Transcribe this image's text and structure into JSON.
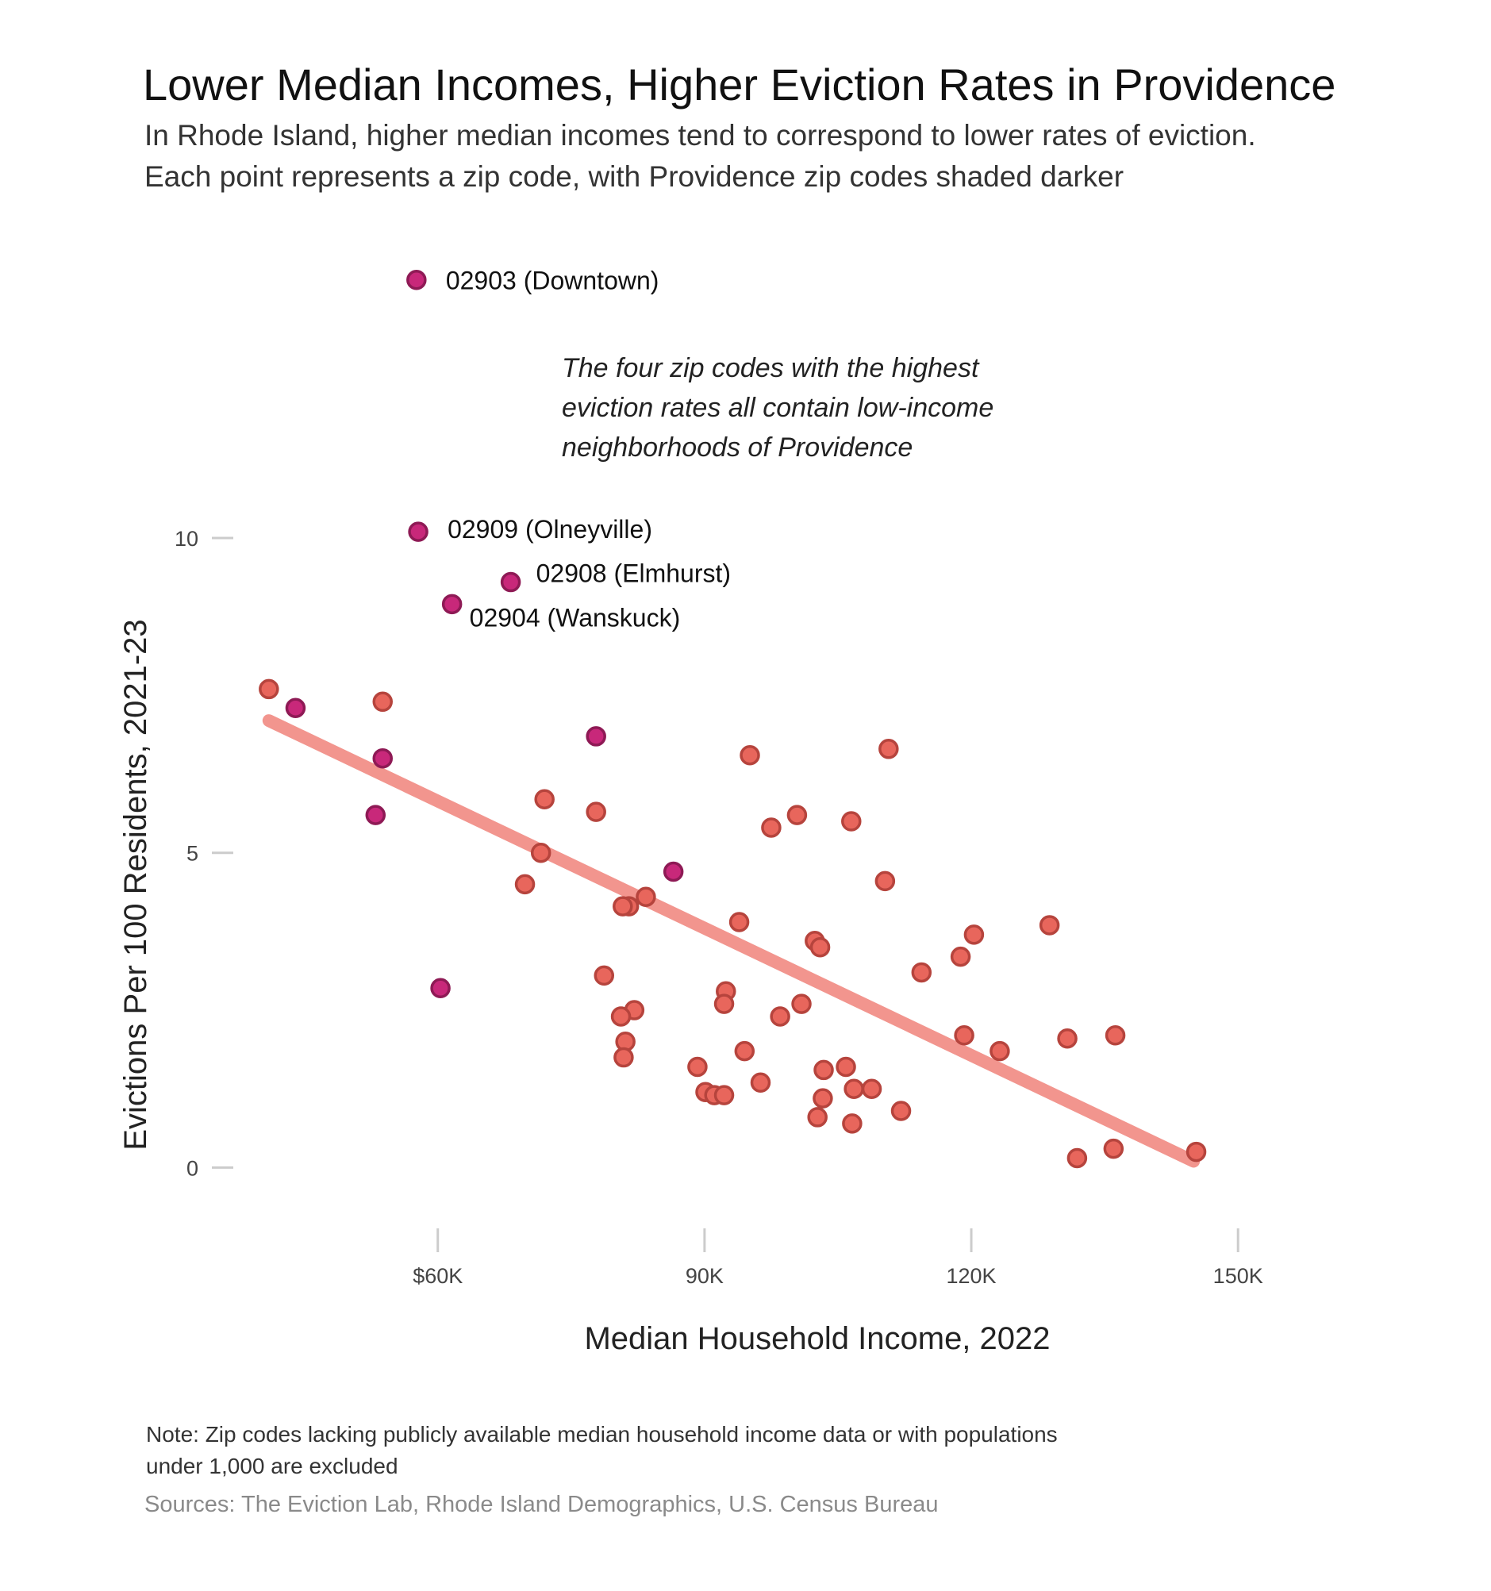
{
  "header": {
    "title": "Lower Median Incomes, Higher Eviction Rates in Providence",
    "subtitle_line1": "In Rhode Island, higher median incomes tend to correspond to lower rates of eviction.",
    "subtitle_line2": "Each point represents a zip code, with Providence zip codes shaded darker"
  },
  "footer": {
    "note_line1": "Note: Zip codes lacking publicly available median household income data or with populations",
    "note_line2": "under 1,000 are excluded",
    "sources": "Sources: The Eviction Lab, Rhode Island Demographics, U.S. Census Bureau"
  },
  "chart_data": {
    "type": "scatter",
    "xlabel": "Median Household Income, 2022",
    "ylabel": "Evictions Per 100 Residents, 2021-23",
    "xlim": [
      37000,
      149000
    ],
    "ylim": [
      -0.6,
      14.5
    ],
    "x_ticks": [
      {
        "value": 60000,
        "label": "$60K"
      },
      {
        "value": 90000,
        "label": "90K"
      },
      {
        "value": 120000,
        "label": "120K"
      },
      {
        "value": 150000,
        "label": "150K"
      }
    ],
    "y_ticks": [
      {
        "value": 0,
        "label": "0"
      },
      {
        "value": 5,
        "label": "5"
      },
      {
        "value": 10,
        "label": "10"
      }
    ],
    "grid": false,
    "colors": {
      "providence": "#c8287a",
      "providence_stroke": "#8e1a55",
      "other": "#e8665c",
      "other_stroke": "#b6443d",
      "trend": "#f2958e"
    },
    "trendline": {
      "x": [
        41000,
        145000
      ],
      "y": [
        7.1,
        0.1
      ]
    },
    "annotation": {
      "line1": "The four zip codes with the highest",
      "line2": "eviction rates all contain low-income",
      "line3": "neighborhoods of Providence"
    },
    "series": [
      {
        "group": "providence",
        "points": [
          {
            "x": 57600,
            "y": 14.1,
            "label": "02903 (Downtown)"
          },
          {
            "x": 57800,
            "y": 10.1,
            "label": "02909 (Olneyville)"
          },
          {
            "x": 68200,
            "y": 9.3,
            "label": "02908 (Elmhurst)"
          },
          {
            "x": 61600,
            "y": 8.95,
            "label": "02904 (Wanskuck)"
          },
          {
            "x": 44000,
            "y": 7.3
          },
          {
            "x": 53800,
            "y": 6.5
          },
          {
            "x": 53000,
            "y": 5.6
          },
          {
            "x": 77800,
            "y": 6.85
          },
          {
            "x": 86500,
            "y": 4.7
          },
          {
            "x": 60300,
            "y": 2.85
          }
        ]
      },
      {
        "group": "other",
        "points": [
          {
            "x": 41000,
            "y": 7.6
          },
          {
            "x": 53800,
            "y": 7.4
          },
          {
            "x": 72000,
            "y": 5.85
          },
          {
            "x": 71600,
            "y": 5.0
          },
          {
            "x": 69800,
            "y": 4.5
          },
          {
            "x": 77800,
            "y": 5.65
          },
          {
            "x": 83400,
            "y": 4.3
          },
          {
            "x": 81500,
            "y": 4.15
          },
          {
            "x": 80800,
            "y": 4.15
          },
          {
            "x": 78700,
            "y": 3.05
          },
          {
            "x": 82100,
            "y": 2.5
          },
          {
            "x": 80600,
            "y": 2.4
          },
          {
            "x": 81100,
            "y": 2.0
          },
          {
            "x": 80900,
            "y": 1.75
          },
          {
            "x": 89200,
            "y": 1.6
          },
          {
            "x": 90100,
            "y": 1.2
          },
          {
            "x": 91100,
            "y": 1.15
          },
          {
            "x": 92200,
            "y": 1.15
          },
          {
            "x": 92400,
            "y": 2.8
          },
          {
            "x": 92200,
            "y": 2.6
          },
          {
            "x": 93900,
            "y": 3.9
          },
          {
            "x": 94500,
            "y": 1.85
          },
          {
            "x": 96300,
            "y": 1.35
          },
          {
            "x": 95100,
            "y": 6.55
          },
          {
            "x": 97500,
            "y": 5.4
          },
          {
            "x": 98500,
            "y": 2.4
          },
          {
            "x": 100400,
            "y": 5.6
          },
          {
            "x": 100900,
            "y": 2.6
          },
          {
            "x": 102400,
            "y": 3.6
          },
          {
            "x": 103000,
            "y": 3.5
          },
          {
            "x": 103400,
            "y": 1.55
          },
          {
            "x": 103300,
            "y": 1.1
          },
          {
            "x": 102700,
            "y": 0.8
          },
          {
            "x": 105900,
            "y": 1.6
          },
          {
            "x": 106800,
            "y": 1.25
          },
          {
            "x": 106600,
            "y": 0.7
          },
          {
            "x": 106500,
            "y": 5.5
          },
          {
            "x": 108800,
            "y": 1.25
          },
          {
            "x": 110700,
            "y": 6.65
          },
          {
            "x": 110300,
            "y": 4.55
          },
          {
            "x": 112100,
            "y": 0.9
          },
          {
            "x": 114400,
            "y": 3.1
          },
          {
            "x": 118800,
            "y": 3.35
          },
          {
            "x": 119200,
            "y": 2.1
          },
          {
            "x": 120300,
            "y": 3.7
          },
          {
            "x": 123200,
            "y": 1.85
          },
          {
            "x": 128800,
            "y": 3.85
          },
          {
            "x": 130800,
            "y": 2.05
          },
          {
            "x": 136200,
            "y": 2.1
          },
          {
            "x": 131900,
            "y": 0.15
          },
          {
            "x": 136000,
            "y": 0.3
          },
          {
            "x": 145300,
            "y": 0.25
          }
        ]
      }
    ]
  }
}
